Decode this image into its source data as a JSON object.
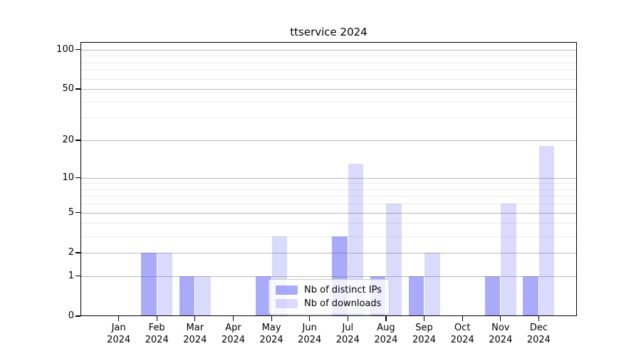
{
  "title": "ttservice 2024",
  "chart_data": {
    "type": "bar",
    "title": "ttservice 2024",
    "categories": [
      "Jan 2024",
      "Feb 2024",
      "Mar 2024",
      "Apr 2024",
      "May 2024",
      "Jun 2024",
      "Jul 2024",
      "Aug 2024",
      "Sep 2024",
      "Oct 2024",
      "Nov 2024",
      "Dec 2024"
    ],
    "series": [
      {
        "name": "Nb of distinct IPs",
        "color": "rgba(85,85,245,0.5)",
        "values": [
          0,
          2,
          1,
          0,
          1,
          0,
          3,
          1,
          1,
          0,
          1,
          1
        ]
      },
      {
        "name": "Nb of downloads",
        "color": "rgba(85,85,245,0.22)",
        "values": [
          0,
          2,
          1,
          0,
          3,
          0,
          13,
          6,
          2,
          0,
          6,
          18
        ]
      }
    ],
    "xlabel": "",
    "ylabel": "",
    "yscale": "log1p",
    "ylim": [
      0,
      115
    ],
    "yticks": [
      0,
      1,
      2,
      5,
      10,
      20,
      50,
      100
    ],
    "minor_yticks": [
      3,
      4,
      6,
      7,
      8,
      9,
      30,
      40,
      60,
      70,
      80,
      90
    ],
    "grid": true,
    "legend_position": "lower center"
  },
  "colors": {
    "bar_distinct_ips": "rgba(85,85,245,0.5)",
    "bar_downloads": "rgba(85,85,245,0.22)",
    "grid_major": "#b8b8b8",
    "grid_minor": "#ebebeb",
    "axis_frame": "#000000",
    "legend_border": "#cccccc"
  }
}
